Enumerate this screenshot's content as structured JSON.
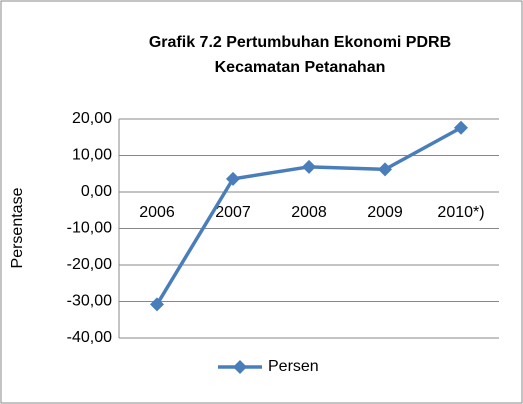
{
  "chart_data": {
    "type": "line",
    "title": [
      "Grafik 7.2 Pertumbuhan Ekonomi PDRB",
      "Kecamatan Petanahan"
    ],
    "y_label": "Persentase",
    "categories": [
      "2006",
      "2007",
      "2008",
      "2009",
      "2010*)"
    ],
    "series": [
      {
        "name": "Persen",
        "color": "#4a7ebb",
        "values": [
          -30.8,
          3.6,
          6.9,
          6.2,
          17.6
        ]
      }
    ],
    "ylim": [
      -40,
      20
    ],
    "yticks": [
      {
        "value": -40,
        "label": "-40,00"
      },
      {
        "value": -30,
        "label": "-30,00"
      },
      {
        "value": -20,
        "label": "-20,00"
      },
      {
        "value": -10,
        "label": "-10,00"
      },
      {
        "value": 0,
        "label": "0,00"
      },
      {
        "value": 10,
        "label": "10,00"
      },
      {
        "value": 20,
        "label": "20,00"
      }
    ],
    "grid": true,
    "legend": "bottom"
  }
}
